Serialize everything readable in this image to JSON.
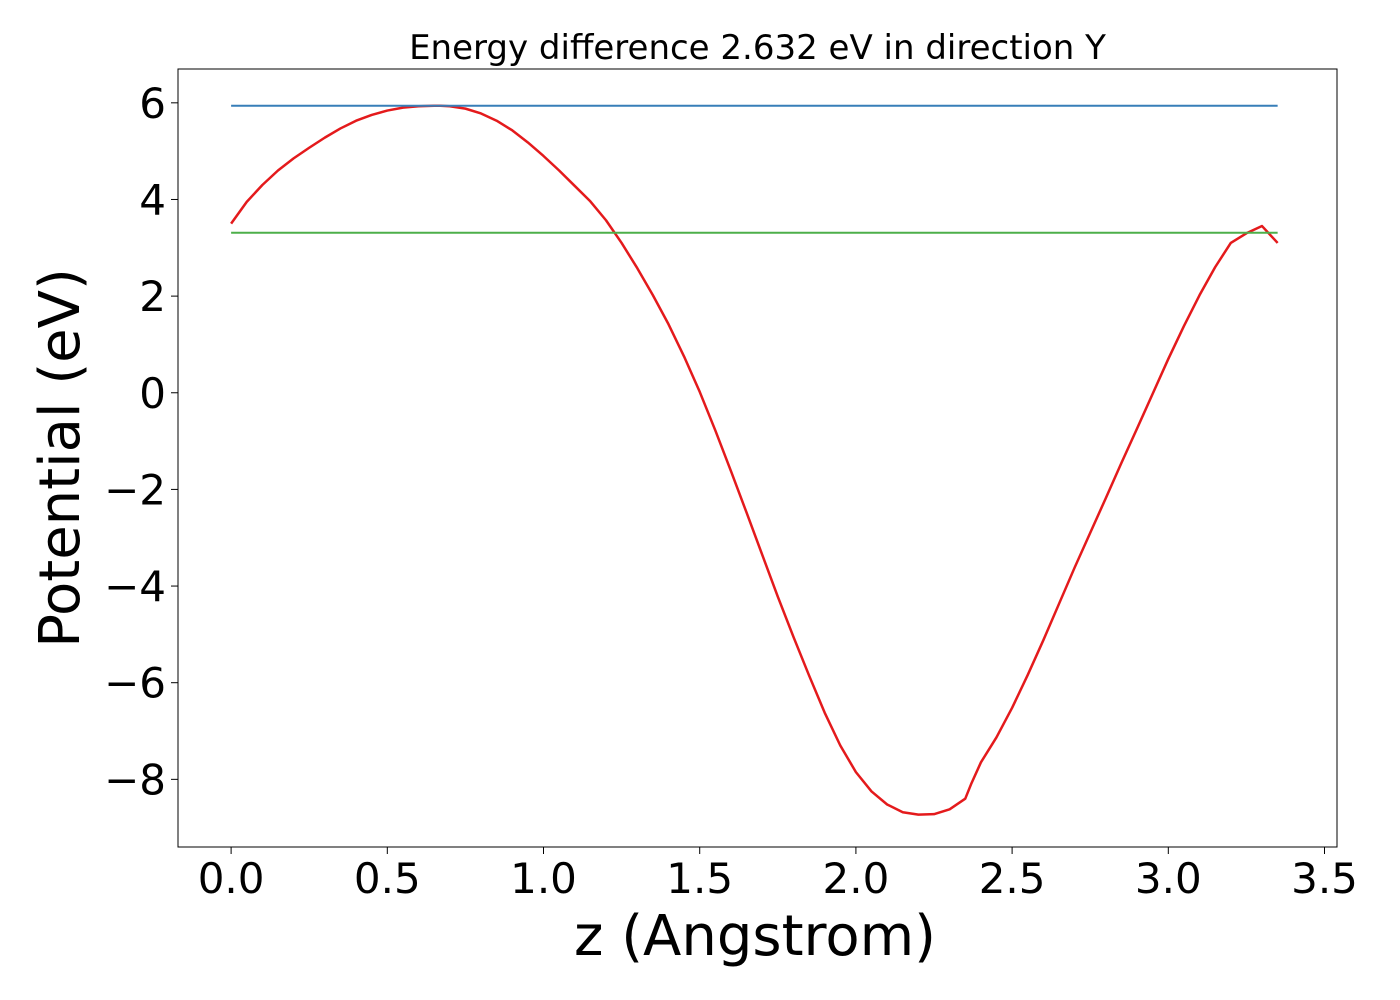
{
  "chart_data": {
    "type": "line",
    "title": "Energy difference 2.632 eV in direction Y",
    "xlabel": "z (Angstrom)",
    "ylabel": "Potential (eV)",
    "xlim": [
      -0.17,
      3.54
    ],
    "ylim": [
      -9.4,
      6.7
    ],
    "xticks": [
      0.0,
      0.5,
      1.0,
      1.5,
      2.0,
      2.5,
      3.0,
      3.5
    ],
    "xtick_labels": [
      "0.0",
      "0.5",
      "1.0",
      "1.5",
      "2.0",
      "2.5",
      "3.0",
      "3.5"
    ],
    "yticks": [
      6,
      4,
      2,
      0,
      -2,
      -4,
      -6,
      -8
    ],
    "ytick_labels": [
      "6",
      "4",
      "2",
      "0",
      "−2",
      "−4",
      "−6",
      "−8"
    ],
    "grid": false,
    "legend": "none",
    "series": [
      {
        "color": "#e41a1c",
        "x": [
          0.0,
          0.05,
          0.1,
          0.15,
          0.2,
          0.25,
          0.3,
          0.35,
          0.4,
          0.45,
          0.5,
          0.55,
          0.6,
          0.65,
          0.67,
          0.7,
          0.75,
          0.8,
          0.85,
          0.9,
          0.95,
          1.0,
          1.05,
          1.1,
          1.15,
          1.2,
          1.25,
          1.3,
          1.35,
          1.4,
          1.45,
          1.5,
          1.55,
          1.6,
          1.65,
          1.7,
          1.75,
          1.8,
          1.85,
          1.9,
          1.95,
          2.0,
          2.05,
          2.1,
          2.15,
          2.2,
          2.25,
          2.3,
          2.35,
          2.37,
          2.4,
          2.45,
          2.5,
          2.55,
          2.6,
          2.65,
          2.7,
          2.75,
          2.8,
          2.85,
          2.9,
          2.95,
          3.0,
          3.05,
          3.1,
          3.15,
          3.2,
          3.25,
          3.3,
          3.35
        ],
        "y": [
          3.5,
          3.95,
          4.3,
          4.6,
          4.85,
          5.07,
          5.28,
          5.47,
          5.63,
          5.75,
          5.84,
          5.9,
          5.93,
          5.94,
          5.94,
          5.93,
          5.88,
          5.78,
          5.63,
          5.43,
          5.18,
          4.9,
          4.6,
          4.28,
          3.96,
          3.57,
          3.1,
          2.58,
          2.02,
          1.42,
          0.75,
          0.02,
          -0.78,
          -1.62,
          -2.48,
          -3.35,
          -4.22,
          -5.05,
          -5.85,
          -6.62,
          -7.3,
          -7.85,
          -8.25,
          -8.52,
          -8.68,
          -8.73,
          -8.72,
          -8.62,
          -8.4,
          -8.08,
          -7.65,
          -7.13,
          -6.52,
          -5.84,
          -5.12,
          -4.37,
          -3.62,
          -2.9,
          -2.18,
          -1.45,
          -0.74,
          -0.02,
          0.7,
          1.38,
          2.02,
          2.6,
          3.1,
          3.3,
          3.45,
          3.1
        ]
      },
      {
        "color": "#377eb8",
        "x": [
          0.0,
          3.35
        ],
        "y": [
          5.94,
          5.94
        ]
      },
      {
        "color": "#4daf4a",
        "x": [
          0.0,
          3.35
        ],
        "y": [
          3.31,
          3.31
        ]
      }
    ]
  }
}
